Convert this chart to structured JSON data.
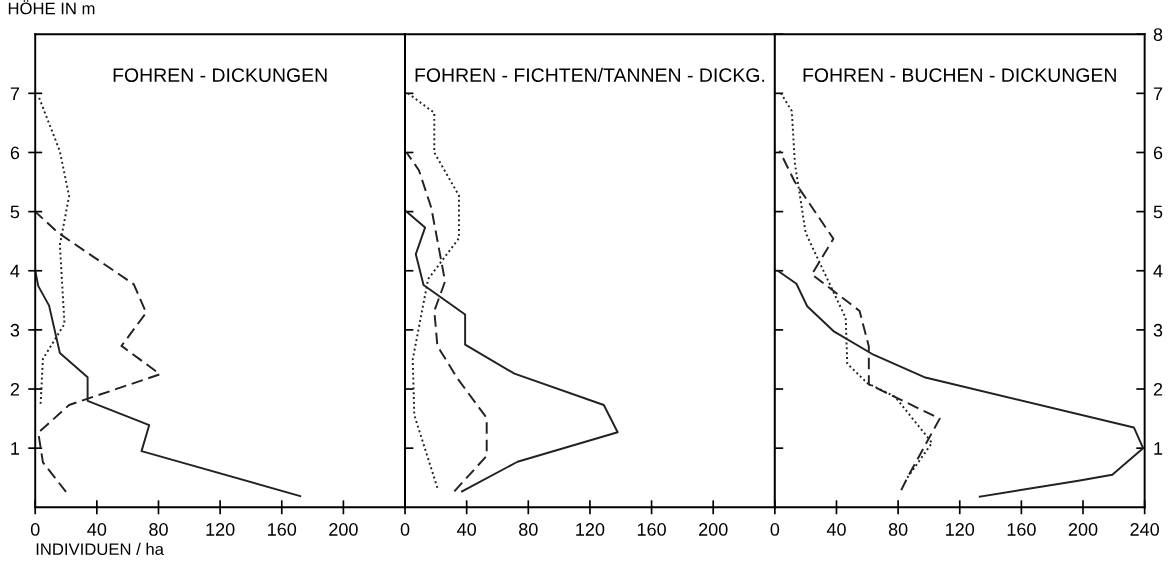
{
  "chart_data": [
    {
      "type": "line",
      "title": "FOHREN - DICKUNGEN",
      "ylabel": "HÖHE IN m",
      "xlabel": "INDIVIDUEN / ha",
      "xlim": [
        0,
        240
      ],
      "xticks": [
        0,
        40,
        80,
        120,
        160,
        200
      ],
      "ylim": [
        0,
        8
      ],
      "yticks": [
        1,
        2,
        3,
        4,
        5,
        6,
        7
      ],
      "grid": false,
      "marker": "none",
      "series": [
        {
          "color": "#222222",
          "line_style": "solid",
          "x": [
            172,
            69,
            74,
            34,
            34,
            16,
            9,
            2,
            0
          ],
          "values": [
            0.19,
            0.95,
            1.39,
            1.8,
            2.2,
            2.61,
            3.41,
            3.74,
            4.0
          ]
        },
        {
          "color": "#222222",
          "line_style": "dashed",
          "x": [
            20,
            5,
            2,
            22,
            81,
            56,
            72,
            64,
            15,
            0
          ],
          "values": [
            0.26,
            0.76,
            1.26,
            1.73,
            2.25,
            2.73,
            3.29,
            3.77,
            4.64,
            5.0
          ]
        },
        {
          "color": "#222222",
          "line_style": "dotted",
          "x": [
            3.5,
            5,
            19,
            16,
            22,
            16,
            2
          ],
          "values": [
            1.75,
            2.51,
            3.1,
            4.44,
            5.26,
            6.02,
            6.96
          ]
        }
      ]
    },
    {
      "type": "line",
      "title": "FOHREN - FICHTEN/TANNEN - DICKG.",
      "xlim": [
        0,
        240
      ],
      "xticks": [
        0,
        40,
        80,
        120,
        160,
        200
      ],
      "ylim": [
        0,
        8
      ],
      "yticks": [
        {
          "value": 1,
          "label": null
        },
        {
          "value": 2,
          "label": null
        },
        {
          "value": 3,
          "label": null
        },
        {
          "value": 4,
          "label": null
        },
        {
          "value": 5,
          "label": null
        },
        {
          "value": 6,
          "label": null
        },
        {
          "value": 7,
          "label": null
        }
      ],
      "tick_labels": "x",
      "grid": false,
      "marker": "none",
      "series": [
        {
          "color": "#222222",
          "line_style": "solid",
          "x": [
            37,
            73,
            138,
            129,
            71,
            39,
            39,
            12,
            7,
            13,
            1
          ],
          "values": [
            0.27,
            0.77,
            1.27,
            1.73,
            2.26,
            2.75,
            3.26,
            3.76,
            4.28,
            4.73,
            5.0
          ]
        },
        {
          "color": "#222222",
          "line_style": "dashed",
          "x": [
            32,
            53,
            53,
            34,
            21,
            19,
            26,
            17,
            9,
            1
          ],
          "values": [
            0.27,
            0.87,
            1.51,
            2.18,
            2.73,
            3.32,
            3.82,
            5.07,
            5.7,
            6.0
          ]
        },
        {
          "color": "#222222",
          "line_style": "dotted",
          "x": [
            21,
            6,
            5,
            15,
            35,
            35,
            19,
            19,
            2
          ],
          "values": [
            0.33,
            1.56,
            2.5,
            3.86,
            4.55,
            5.27,
            6.0,
            6.67,
            7.0
          ]
        }
      ]
    },
    {
      "type": "line",
      "title": "FOHREN - BUCHEN - DICKUNGEN",
      "xlim": [
        0,
        240
      ],
      "xticks": [
        0,
        40,
        80,
        120,
        160,
        200,
        240
      ],
      "y2lim": [
        0,
        8
      ],
      "y2ticks": [
        1,
        2,
        3,
        4,
        5,
        6,
        7,
        8
      ],
      "grid": false,
      "marker": "none",
      "series": [
        {
          "color": "#222222",
          "line_style": "solid",
          "axis": "y2",
          "x": [
            133,
            197,
            219,
            239,
            233,
            97,
            64,
            38,
            21,
            14,
            2
          ],
          "values": [
            0.18,
            0.45,
            0.55,
            1.0,
            1.35,
            2.2,
            2.58,
            2.98,
            3.4,
            3.78,
            4.0
          ]
        },
        {
          "color": "#222222",
          "line_style": "dashed",
          "axis": "y2",
          "x": [
            82,
            86,
            107,
            61,
            61,
            55,
            24,
            38,
            13,
            3
          ],
          "values": [
            0.29,
            0.5,
            1.5,
            2.08,
            2.72,
            3.32,
            3.94,
            4.54,
            5.5,
            6.03
          ]
        },
        {
          "color": "#222222",
          "line_style": "dotted",
          "axis": "y2",
          "x": [
            86,
            102,
            78,
            60,
            47,
            46,
            20,
            13,
            11,
            4
          ],
          "values": [
            0.5,
            1.09,
            1.87,
            2.1,
            2.43,
            3.2,
            4.64,
            5.82,
            6.7,
            7.0
          ]
        }
      ]
    }
  ]
}
